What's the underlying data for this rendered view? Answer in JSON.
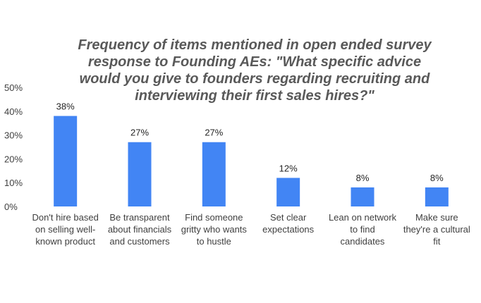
{
  "chart_data": {
    "type": "bar",
    "title_lines": [
      "Frequency of items mentioned in open ended survey",
      "response to Founding AEs: \"What specific advice",
      "would you give to founders regarding recruiting and",
      "interviewing their first sales hires?\""
    ],
    "categories": [
      [
        "Don't hire based",
        "on selling well-",
        "known product"
      ],
      [
        "Be transparent",
        "about financials",
        "and customers"
      ],
      [
        "Find someone",
        "gritty who wants",
        "to hustle"
      ],
      [
        "Set clear",
        "expectations"
      ],
      [
        "Lean on network",
        "to find",
        "candidates"
      ],
      [
        "Make sure",
        "they're a cultural",
        "fit"
      ]
    ],
    "values": [
      38,
      27,
      27,
      12,
      8,
      8
    ],
    "data_labels": [
      "38%",
      "27%",
      "27%",
      "12%",
      "8%",
      "8%"
    ],
    "yticks": [
      {
        "value": 0,
        "label": "0%"
      },
      {
        "value": 10,
        "label": "10%"
      },
      {
        "value": 20,
        "label": "20%"
      },
      {
        "value": 30,
        "label": "30%"
      },
      {
        "value": 40,
        "label": "40%"
      },
      {
        "value": 50,
        "label": "50%"
      }
    ],
    "ylim": [
      0,
      50
    ],
    "bar_color": "#4285F4",
    "grid": false,
    "legend": "none"
  }
}
